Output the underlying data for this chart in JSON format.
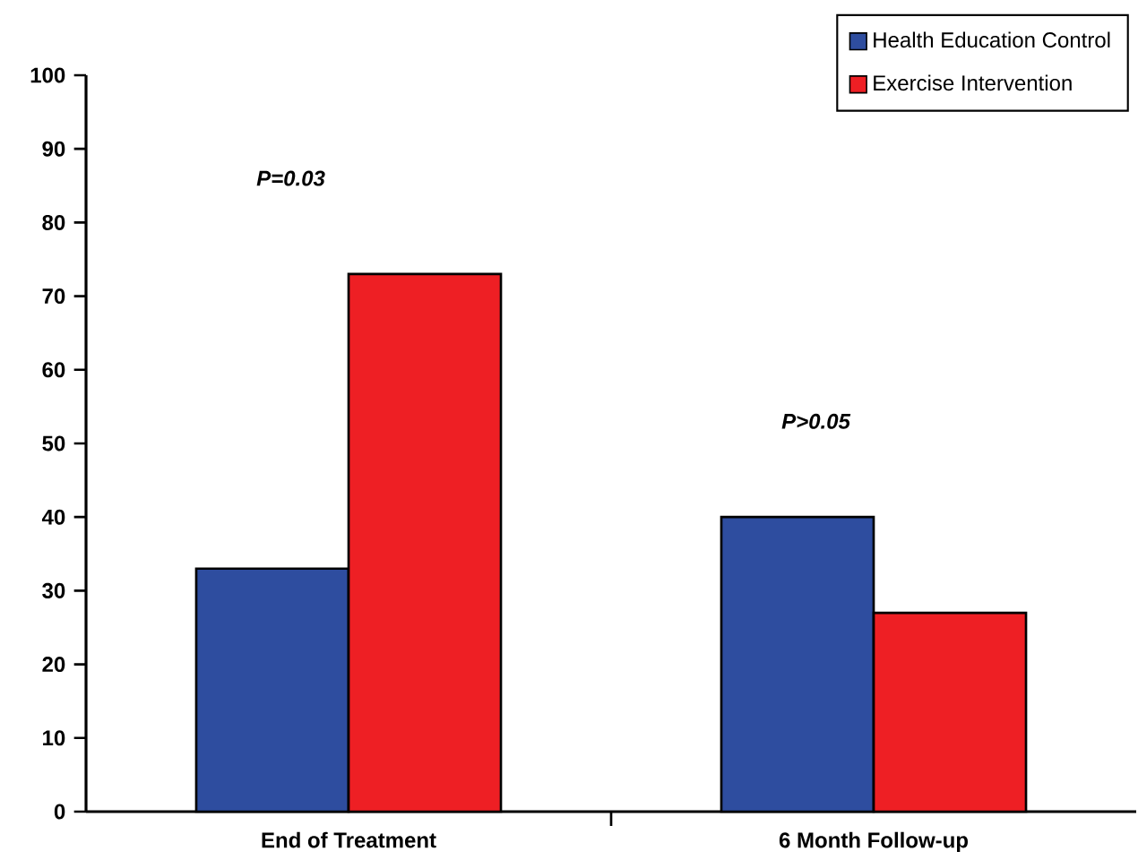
{
  "chart_data": {
    "type": "bar",
    "categories": [
      "End of Treatment",
      "6 Month Follow-up"
    ],
    "series": [
      {
        "name": "Health Education Control",
        "color": "#2e4d9f",
        "values": [
          33,
          40
        ]
      },
      {
        "name": "Exercise Intervention",
        "color": "#ee1f24",
        "values": [
          73,
          27
        ]
      }
    ],
    "ylim": [
      0,
      100
    ],
    "yticks": [
      0,
      10,
      20,
      30,
      40,
      50,
      60,
      70,
      80,
      90,
      100
    ],
    "annotations": [
      "P=0.03",
      "P>0.05"
    ],
    "legend": "top right",
    "grid": false
  }
}
